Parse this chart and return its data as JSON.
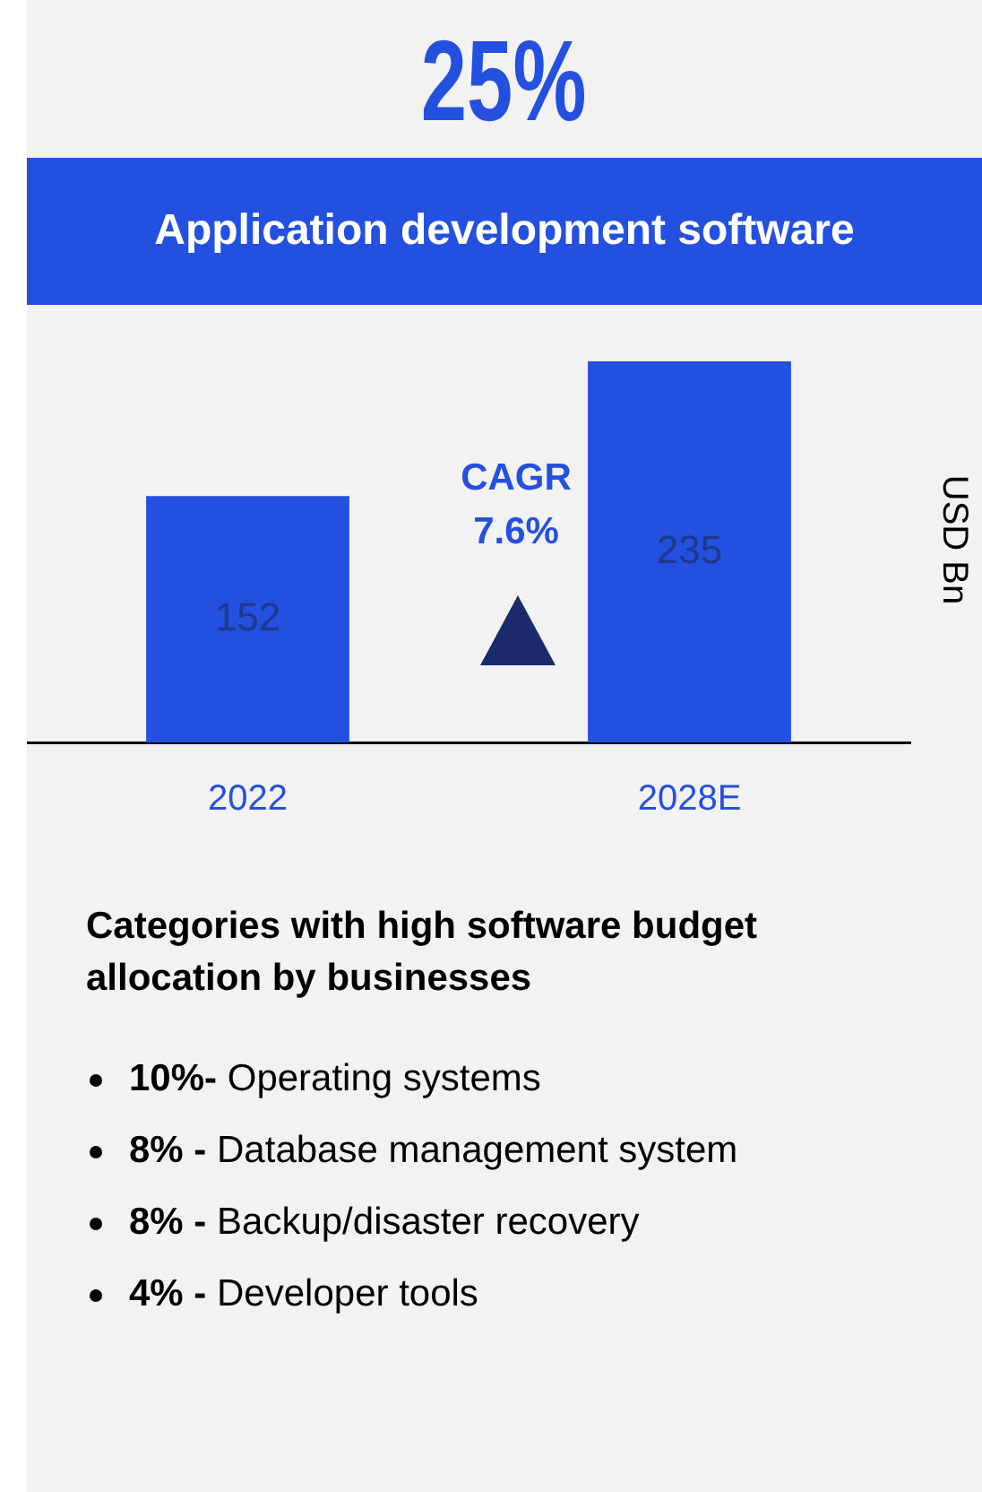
{
  "chart_data": {
    "type": "bar",
    "title": "25%",
    "subtitle": "Application development software",
    "ylabel": "USD Bn",
    "categories": [
      "2022",
      "2028E"
    ],
    "values": [
      152,
      235
    ],
    "color": "#2450e0",
    "data_labels": true,
    "grid": false,
    "legend": false,
    "annotations": [
      "CAGR 7.6%",
      "Categories with high software budget allocation by businesses",
      "10%- Operating systems",
      "8% - Database management system",
      "8% - Backup/disaster recovery",
      "4% - Developer tools"
    ]
  }
}
